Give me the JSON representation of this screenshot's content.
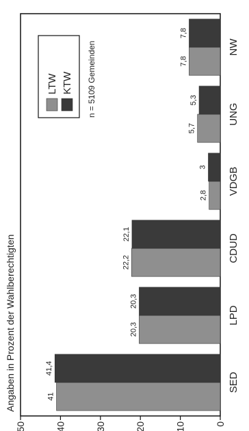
{
  "chart_data": {
    "type": "bar",
    "ylabel": "Angaben in Prozent der Wahlberechtigten",
    "ylim": [
      0,
      50
    ],
    "yticks": [
      "0",
      "10",
      "20",
      "30",
      "40",
      "50"
    ],
    "categories": [
      "SED",
      "LPD",
      "CDUD",
      "VDGB",
      "UNG",
      "NW"
    ],
    "series": [
      {
        "name": "LTW",
        "color": "#8f8f8f",
        "values": [
          41,
          20.3,
          22.2,
          2.8,
          5.7,
          7.8
        ],
        "labels": [
          "41",
          "20,3",
          "22,2",
          "2,8",
          "5,7",
          "7,8"
        ]
      },
      {
        "name": "KTW",
        "color": "#3a3a3a",
        "values": [
          41.4,
          20.3,
          22.1,
          3,
          5.3,
          7.8
        ],
        "labels": [
          "41,4",
          "20,3",
          "22,1",
          "3",
          "5,3",
          "7,8"
        ]
      }
    ],
    "note": "n = 5109 Gemeinden",
    "legend_position": "upper-right",
    "grid": false,
    "orientation": "rotated-90-ccw"
  }
}
